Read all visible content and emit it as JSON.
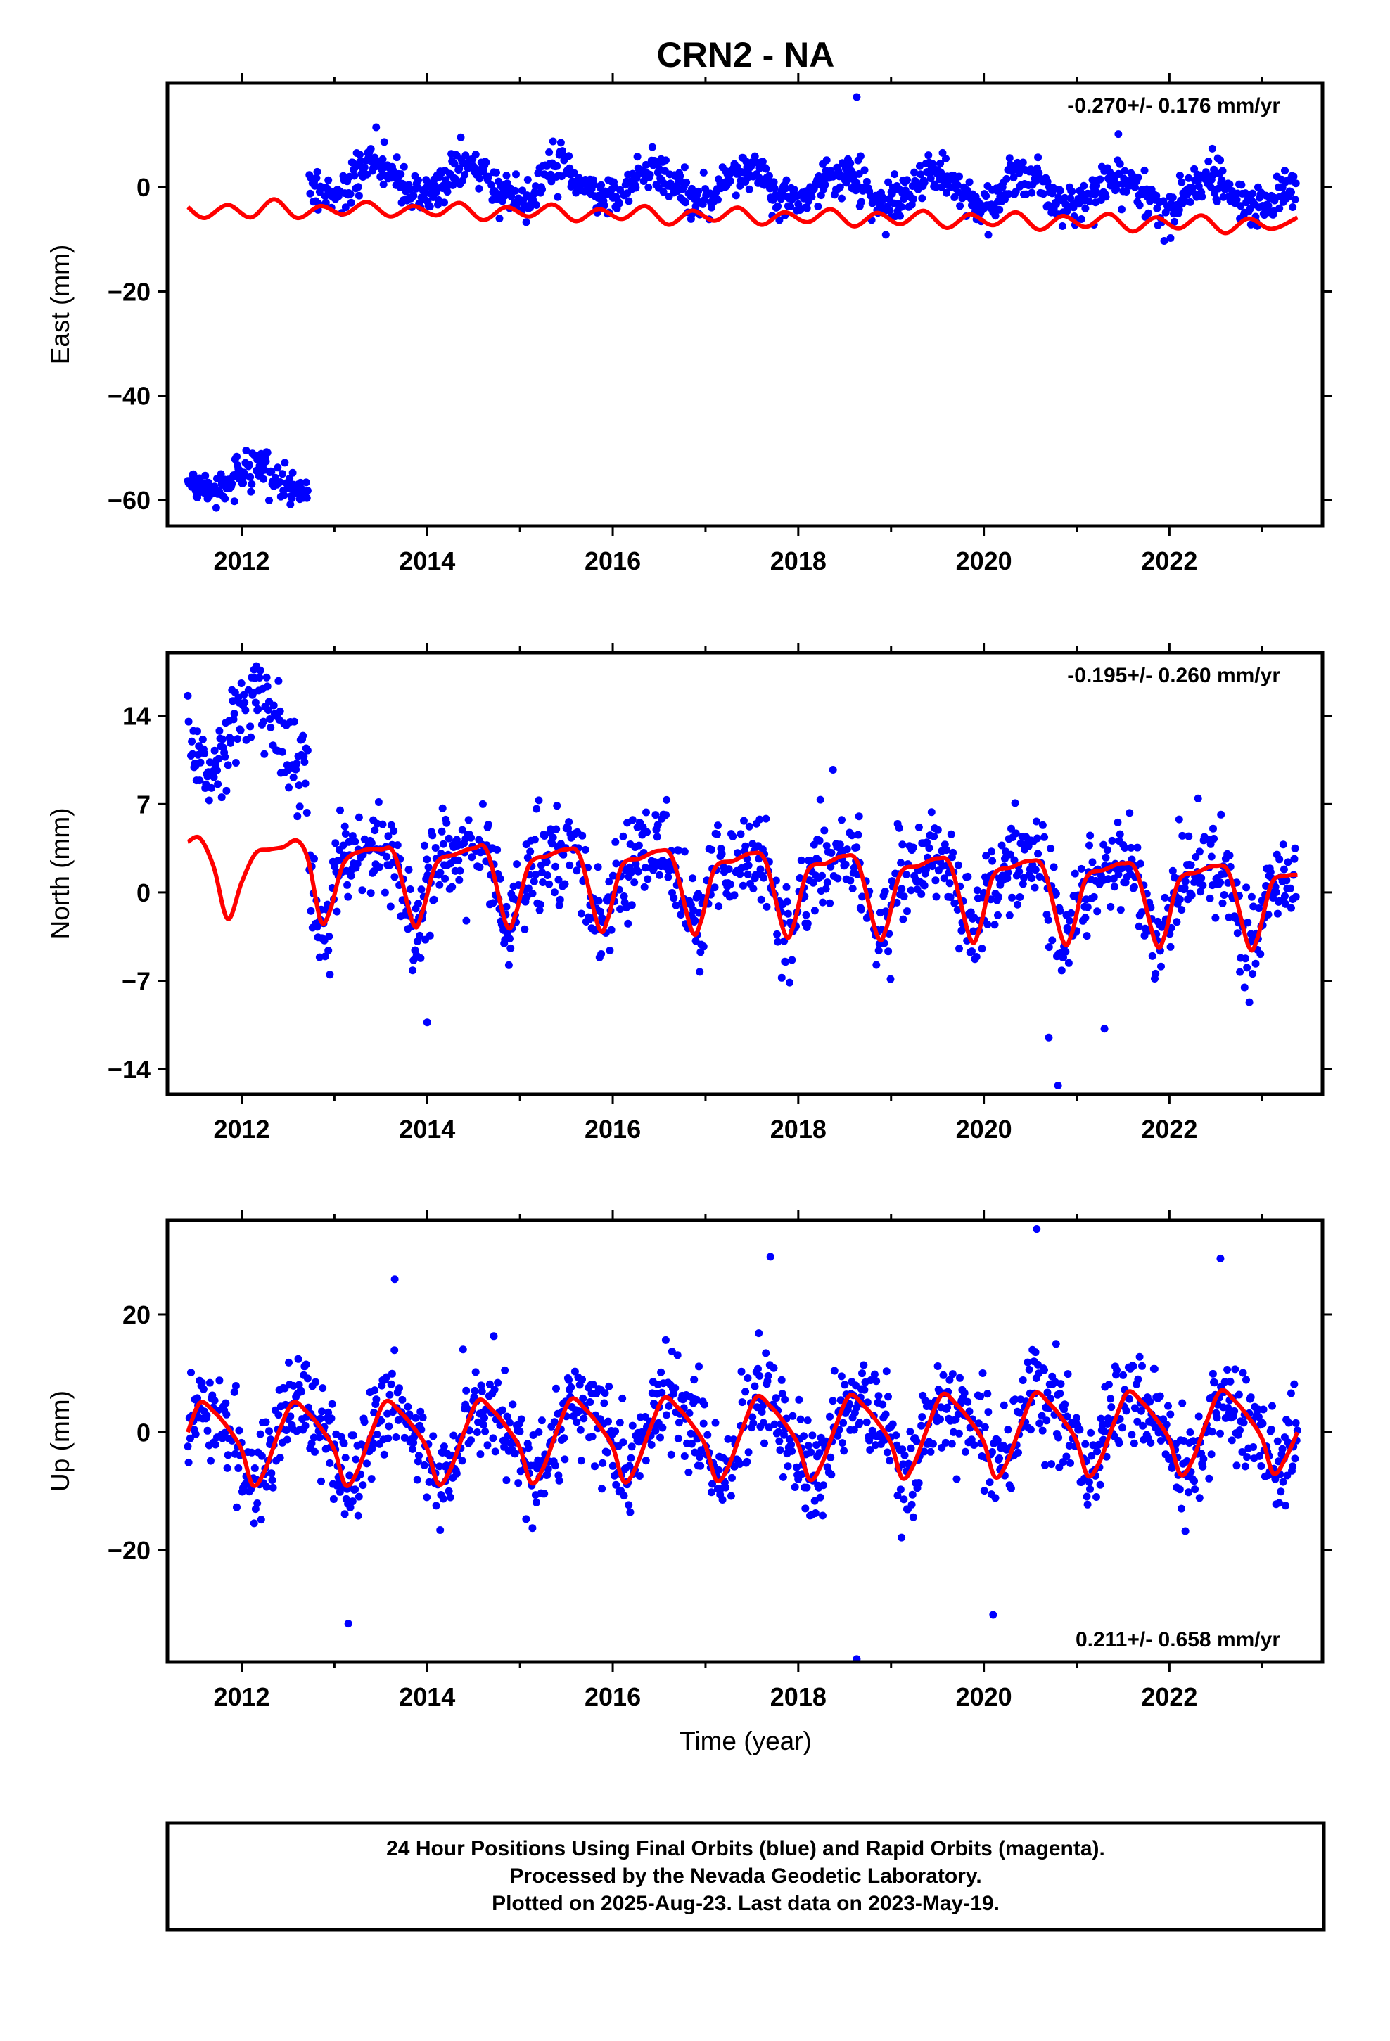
{
  "title": "CRN2 - NA",
  "colors": {
    "final": "#0000ff",
    "model": "#ff0000",
    "frame": "#000000"
  },
  "chart_data": [
    {
      "type": "scatter",
      "component": "east",
      "ylabel": "East (mm)",
      "rate_label": "-0.270+/- 0.176 mm/yr",
      "rate_position": "top-right",
      "xlim": [
        2011.2,
        2023.65
      ],
      "ylim": [
        -65,
        20
      ],
      "yticks": [
        0,
        -20,
        -40,
        -60
      ],
      "ytick_labels": [
        "0",
        "−20",
        "−40",
        "−60"
      ],
      "xticks": [
        2012,
        2014,
        2016,
        2018,
        2020,
        2022
      ],
      "xtick_labels": [
        "2012",
        "2014",
        "2016",
        "2018",
        "2020",
        "2022"
      ],
      "data_range": [
        2011.42,
        2023.38
      ],
      "segments": [
        {
          "from": 2011.42,
          "to": 2012.72,
          "mean": -56,
          "slope": 0,
          "annual_amp": 2.5,
          "noise": 1.6
        },
        {
          "from": 2012.73,
          "to": 2023.38,
          "mean": 1.5,
          "slope": -0.27,
          "annual_amp": 3.0,
          "noise": 2.0
        }
      ],
      "outliers": [
        [
          2018.63,
          17.3
        ],
        [
          2013.45,
          11.5
        ],
        [
          2021.45,
          10.2
        ]
      ],
      "model_curve": [
        [
          2011.42,
          -3.8
        ],
        [
          2011.6,
          -5.9
        ],
        [
          2011.85,
          -3.4
        ],
        [
          2012.1,
          -5.8
        ],
        [
          2012.35,
          -2.3
        ],
        [
          2012.6,
          -5.9
        ],
        [
          2012.85,
          -3.6
        ],
        [
          2013.1,
          -5.2
        ],
        [
          2013.35,
          -2.8
        ],
        [
          2013.6,
          -5.6
        ],
        [
          2013.85,
          -3.6
        ],
        [
          2014.1,
          -5.4
        ],
        [
          2014.35,
          -3.0
        ],
        [
          2014.6,
          -6.3
        ],
        [
          2014.85,
          -3.8
        ],
        [
          2015.1,
          -5.6
        ],
        [
          2015.35,
          -3.3
        ],
        [
          2015.6,
          -6.5
        ],
        [
          2015.85,
          -4.2
        ],
        [
          2016.1,
          -6.1
        ],
        [
          2016.35,
          -3.6
        ],
        [
          2016.6,
          -7.2
        ],
        [
          2016.85,
          -4.5
        ],
        [
          2017.1,
          -6.4
        ],
        [
          2017.35,
          -3.9
        ],
        [
          2017.6,
          -7.2
        ],
        [
          2017.85,
          -4.8
        ],
        [
          2018.1,
          -6.7
        ],
        [
          2018.35,
          -4.2
        ],
        [
          2018.6,
          -7.5
        ],
        [
          2018.85,
          -4.9
        ],
        [
          2019.1,
          -7.1
        ],
        [
          2019.35,
          -4.5
        ],
        [
          2019.6,
          -7.8
        ],
        [
          2019.85,
          -5.2
        ],
        [
          2020.1,
          -7.3
        ],
        [
          2020.35,
          -4.8
        ],
        [
          2020.6,
          -8.2
        ],
        [
          2020.85,
          -5.5
        ],
        [
          2021.1,
          -7.6
        ],
        [
          2021.35,
          -5.1
        ],
        [
          2021.6,
          -8.5
        ],
        [
          2021.85,
          -5.8
        ],
        [
          2022.1,
          -7.9
        ],
        [
          2022.35,
          -5.4
        ],
        [
          2022.6,
          -8.8
        ],
        [
          2022.85,
          -6.0
        ],
        [
          2023.1,
          -8.0
        ],
        [
          2023.38,
          -5.8
        ]
      ]
    },
    {
      "type": "scatter",
      "component": "north",
      "ylabel": "North (mm)",
      "rate_label": "-0.195+/- 0.260 mm/yr",
      "rate_position": "top-right",
      "xlim": [
        2011.2,
        2023.65
      ],
      "ylim": [
        -16,
        19
      ],
      "yticks": [
        14,
        7,
        0,
        -7,
        -14
      ],
      "ytick_labels": [
        "14",
        "7",
        "0",
        "−7",
        "−14"
      ],
      "xticks": [
        2012,
        2014,
        2016,
        2018,
        2020,
        2022
      ],
      "xtick_labels": [
        "2012",
        "2014",
        "2016",
        "2018",
        "2020",
        "2022"
      ],
      "data_range": [
        2011.42,
        2023.38
      ],
      "segments": [
        {
          "from": 2011.42,
          "to": 2012.72,
          "mean": 13.0,
          "slope": 0,
          "annual_amp": 2.8,
          "noise": 1.8
        },
        {
          "from": 2012.73,
          "to": 2023.38,
          "mean": 0.5,
          "slope": -0.195,
          "annual_amp": 3.0,
          "noise": 1.9
        }
      ],
      "outliers": [
        [
          2020.7,
          -11.5
        ],
        [
          2020.8,
          -15.3
        ],
        [
          2014.0,
          -10.3
        ],
        [
          2021.3,
          -10.8
        ]
      ],
      "model_curve": [
        [
          2011.42,
          4.0
        ],
        [
          2011.55,
          4.3
        ],
        [
          2011.7,
          2.0
        ],
        [
          2011.85,
          -2.1
        ],
        [
          2012.0,
          0.8
        ],
        [
          2012.15,
          3.1
        ],
        [
          2012.3,
          3.4
        ],
        [
          2012.45,
          3.6
        ],
        [
          2012.6,
          4.1
        ],
        [
          2012.72,
          2.5
        ],
        [
          2012.85,
          -2.2
        ],
        [
          2012.95,
          -1.5
        ],
        [
          2013.1,
          2.3
        ],
        [
          2013.3,
          3.3
        ],
        [
          2013.5,
          3.4
        ],
        [
          2013.65,
          3.0
        ],
        [
          2013.85,
          -2.5
        ],
        [
          2013.95,
          -1.5
        ],
        [
          2014.1,
          2.3
        ],
        [
          2014.3,
          3.0
        ],
        [
          2014.5,
          3.5
        ],
        [
          2014.65,
          3.2
        ],
        [
          2014.85,
          -2.5
        ],
        [
          2014.95,
          -1.8
        ],
        [
          2015.1,
          2.2
        ],
        [
          2015.3,
          2.9
        ],
        [
          2015.5,
          3.4
        ],
        [
          2015.65,
          2.8
        ],
        [
          2015.85,
          -2.8
        ],
        [
          2015.95,
          -2.0
        ],
        [
          2016.1,
          2.1
        ],
        [
          2016.3,
          2.7
        ],
        [
          2016.5,
          3.3
        ],
        [
          2016.65,
          2.6
        ],
        [
          2016.85,
          -3.0
        ],
        [
          2016.95,
          -2.3
        ],
        [
          2017.1,
          1.9
        ],
        [
          2017.3,
          2.5
        ],
        [
          2017.5,
          3.1
        ],
        [
          2017.65,
          2.4
        ],
        [
          2017.85,
          -3.2
        ],
        [
          2017.95,
          -2.6
        ],
        [
          2018.1,
          1.7
        ],
        [
          2018.3,
          2.3
        ],
        [
          2018.5,
          2.9
        ],
        [
          2018.65,
          2.2
        ],
        [
          2018.85,
          -3.4
        ],
        [
          2018.95,
          -2.8
        ],
        [
          2019.1,
          1.5
        ],
        [
          2019.3,
          2.1
        ],
        [
          2019.5,
          2.7
        ],
        [
          2019.65,
          2.0
        ],
        [
          2019.85,
          -3.6
        ],
        [
          2019.95,
          -3.0
        ],
        [
          2020.1,
          1.3
        ],
        [
          2020.3,
          2.0
        ],
        [
          2020.5,
          2.5
        ],
        [
          2020.65,
          1.8
        ],
        [
          2020.85,
          -3.8
        ],
        [
          2020.95,
          -3.2
        ],
        [
          2021.1,
          1.1
        ],
        [
          2021.3,
          1.8
        ],
        [
          2021.5,
          2.3
        ],
        [
          2021.65,
          1.6
        ],
        [
          2021.85,
          -4.0
        ],
        [
          2021.95,
          -3.4
        ],
        [
          2022.1,
          0.9
        ],
        [
          2022.3,
          1.6
        ],
        [
          2022.5,
          2.1
        ],
        [
          2022.65,
          1.4
        ],
        [
          2022.85,
          -4.2
        ],
        [
          2022.95,
          -3.6
        ],
        [
          2023.1,
          0.7
        ],
        [
          2023.25,
          1.3
        ],
        [
          2023.38,
          1.4
        ]
      ]
    },
    {
      "type": "scatter",
      "component": "up",
      "ylabel": "Up (mm)",
      "rate_label": "0.211+/- 0.658 mm/yr",
      "rate_position": "bottom-right",
      "xlim": [
        2011.2,
        2023.65
      ],
      "ylim": [
        -39,
        36
      ],
      "yticks": [
        20,
        0,
        -20
      ],
      "ytick_labels": [
        "20",
        "0",
        "−20"
      ],
      "xticks": [
        2012,
        2014,
        2016,
        2018,
        2020,
        2022
      ],
      "xtick_labels": [
        "2012",
        "2014",
        "2016",
        "2018",
        "2020",
        "2022"
      ],
      "xlabel": "Time (year)",
      "data_range": [
        2011.42,
        2023.38
      ],
      "segments": [
        {
          "from": 2011.42,
          "to": 2023.38,
          "mean": 0,
          "slope": 0.211,
          "annual_amp": 6.0,
          "noise": 4.2
        }
      ],
      "outliers": [
        [
          2013.15,
          -32.5
        ],
        [
          2018.63,
          -38.5
        ],
        [
          2020.57,
          34.5
        ],
        [
          2022.55,
          29.5
        ],
        [
          2017.7,
          29.8
        ],
        [
          2020.1,
          -31.0
        ],
        [
          2013.65,
          26.0
        ]
      ],
      "model_curve": [
        [
          2011.42,
          0.0
        ],
        [
          2011.55,
          5.0
        ],
        [
          2011.7,
          3.5
        ],
        [
          2011.85,
          0.8
        ],
        [
          2012.0,
          -3.0
        ],
        [
          2012.12,
          -9.0
        ],
        [
          2012.25,
          -6.5
        ],
        [
          2012.4,
          0.0
        ],
        [
          2012.55,
          5.0
        ],
        [
          2012.7,
          3.5
        ],
        [
          2012.85,
          0.8
        ],
        [
          2013.0,
          -3.0
        ],
        [
          2013.12,
          -9.0
        ],
        [
          2013.25,
          -6.5
        ],
        [
          2013.4,
          0.0
        ],
        [
          2013.55,
          5.2
        ],
        [
          2013.7,
          3.6
        ],
        [
          2013.85,
          0.9
        ],
        [
          2014.0,
          -2.8
        ],
        [
          2014.12,
          -8.8
        ],
        [
          2014.25,
          -6.3
        ],
        [
          2014.4,
          0.1
        ],
        [
          2014.55,
          5.4
        ],
        [
          2014.7,
          3.8
        ],
        [
          2014.85,
          1.0
        ],
        [
          2015.0,
          -2.7
        ],
        [
          2015.12,
          -8.6
        ],
        [
          2015.25,
          -6.1
        ],
        [
          2015.4,
          0.3
        ],
        [
          2015.55,
          5.6
        ],
        [
          2015.7,
          4.0
        ],
        [
          2015.85,
          1.2
        ],
        [
          2016.0,
          -2.5
        ],
        [
          2016.12,
          -8.4
        ],
        [
          2016.25,
          -5.9
        ],
        [
          2016.4,
          0.5
        ],
        [
          2016.55,
          5.8
        ],
        [
          2016.7,
          4.2
        ],
        [
          2016.85,
          1.4
        ],
        [
          2017.0,
          -2.3
        ],
        [
          2017.12,
          -8.2
        ],
        [
          2017.25,
          -5.7
        ],
        [
          2017.4,
          0.7
        ],
        [
          2017.55,
          6.0
        ],
        [
          2017.7,
          4.4
        ],
        [
          2017.85,
          1.6
        ],
        [
          2018.0,
          -2.1
        ],
        [
          2018.12,
          -8.0
        ],
        [
          2018.25,
          -5.5
        ],
        [
          2018.4,
          0.9
        ],
        [
          2018.55,
          6.2
        ],
        [
          2018.7,
          4.6
        ],
        [
          2018.85,
          1.8
        ],
        [
          2019.0,
          -1.9
        ],
        [
          2019.12,
          -7.8
        ],
        [
          2019.25,
          -5.3
        ],
        [
          2019.4,
          1.1
        ],
        [
          2019.55,
          6.4
        ],
        [
          2019.7,
          4.8
        ],
        [
          2019.85,
          2.0
        ],
        [
          2020.0,
          -1.7
        ],
        [
          2020.12,
          -7.6
        ],
        [
          2020.25,
          -5.1
        ],
        [
          2020.4,
          1.3
        ],
        [
          2020.55,
          6.6
        ],
        [
          2020.7,
          5.0
        ],
        [
          2020.85,
          2.2
        ],
        [
          2021.0,
          -1.5
        ],
        [
          2021.12,
          -7.4
        ],
        [
          2021.25,
          -4.9
        ],
        [
          2021.4,
          1.5
        ],
        [
          2021.55,
          6.8
        ],
        [
          2021.7,
          5.2
        ],
        [
          2021.85,
          2.4
        ],
        [
          2022.0,
          -1.3
        ],
        [
          2022.12,
          -7.2
        ],
        [
          2022.25,
          -4.7
        ],
        [
          2022.4,
          1.7
        ],
        [
          2022.55,
          7.0
        ],
        [
          2022.7,
          5.4
        ],
        [
          2022.85,
          2.6
        ],
        [
          2023.0,
          -1.1
        ],
        [
          2023.12,
          -7.0
        ],
        [
          2023.25,
          -4.5
        ],
        [
          2023.38,
          0.0
        ]
      ]
    }
  ],
  "footer": {
    "line1": "24 Hour Positions Using Final Orbits (blue) and Rapid Orbits (magenta).",
    "line2": "Processed by the Nevada Geodetic Laboratory.",
    "line3": "Plotted on 2025-Aug-23. Last data on 2023-May-19."
  }
}
